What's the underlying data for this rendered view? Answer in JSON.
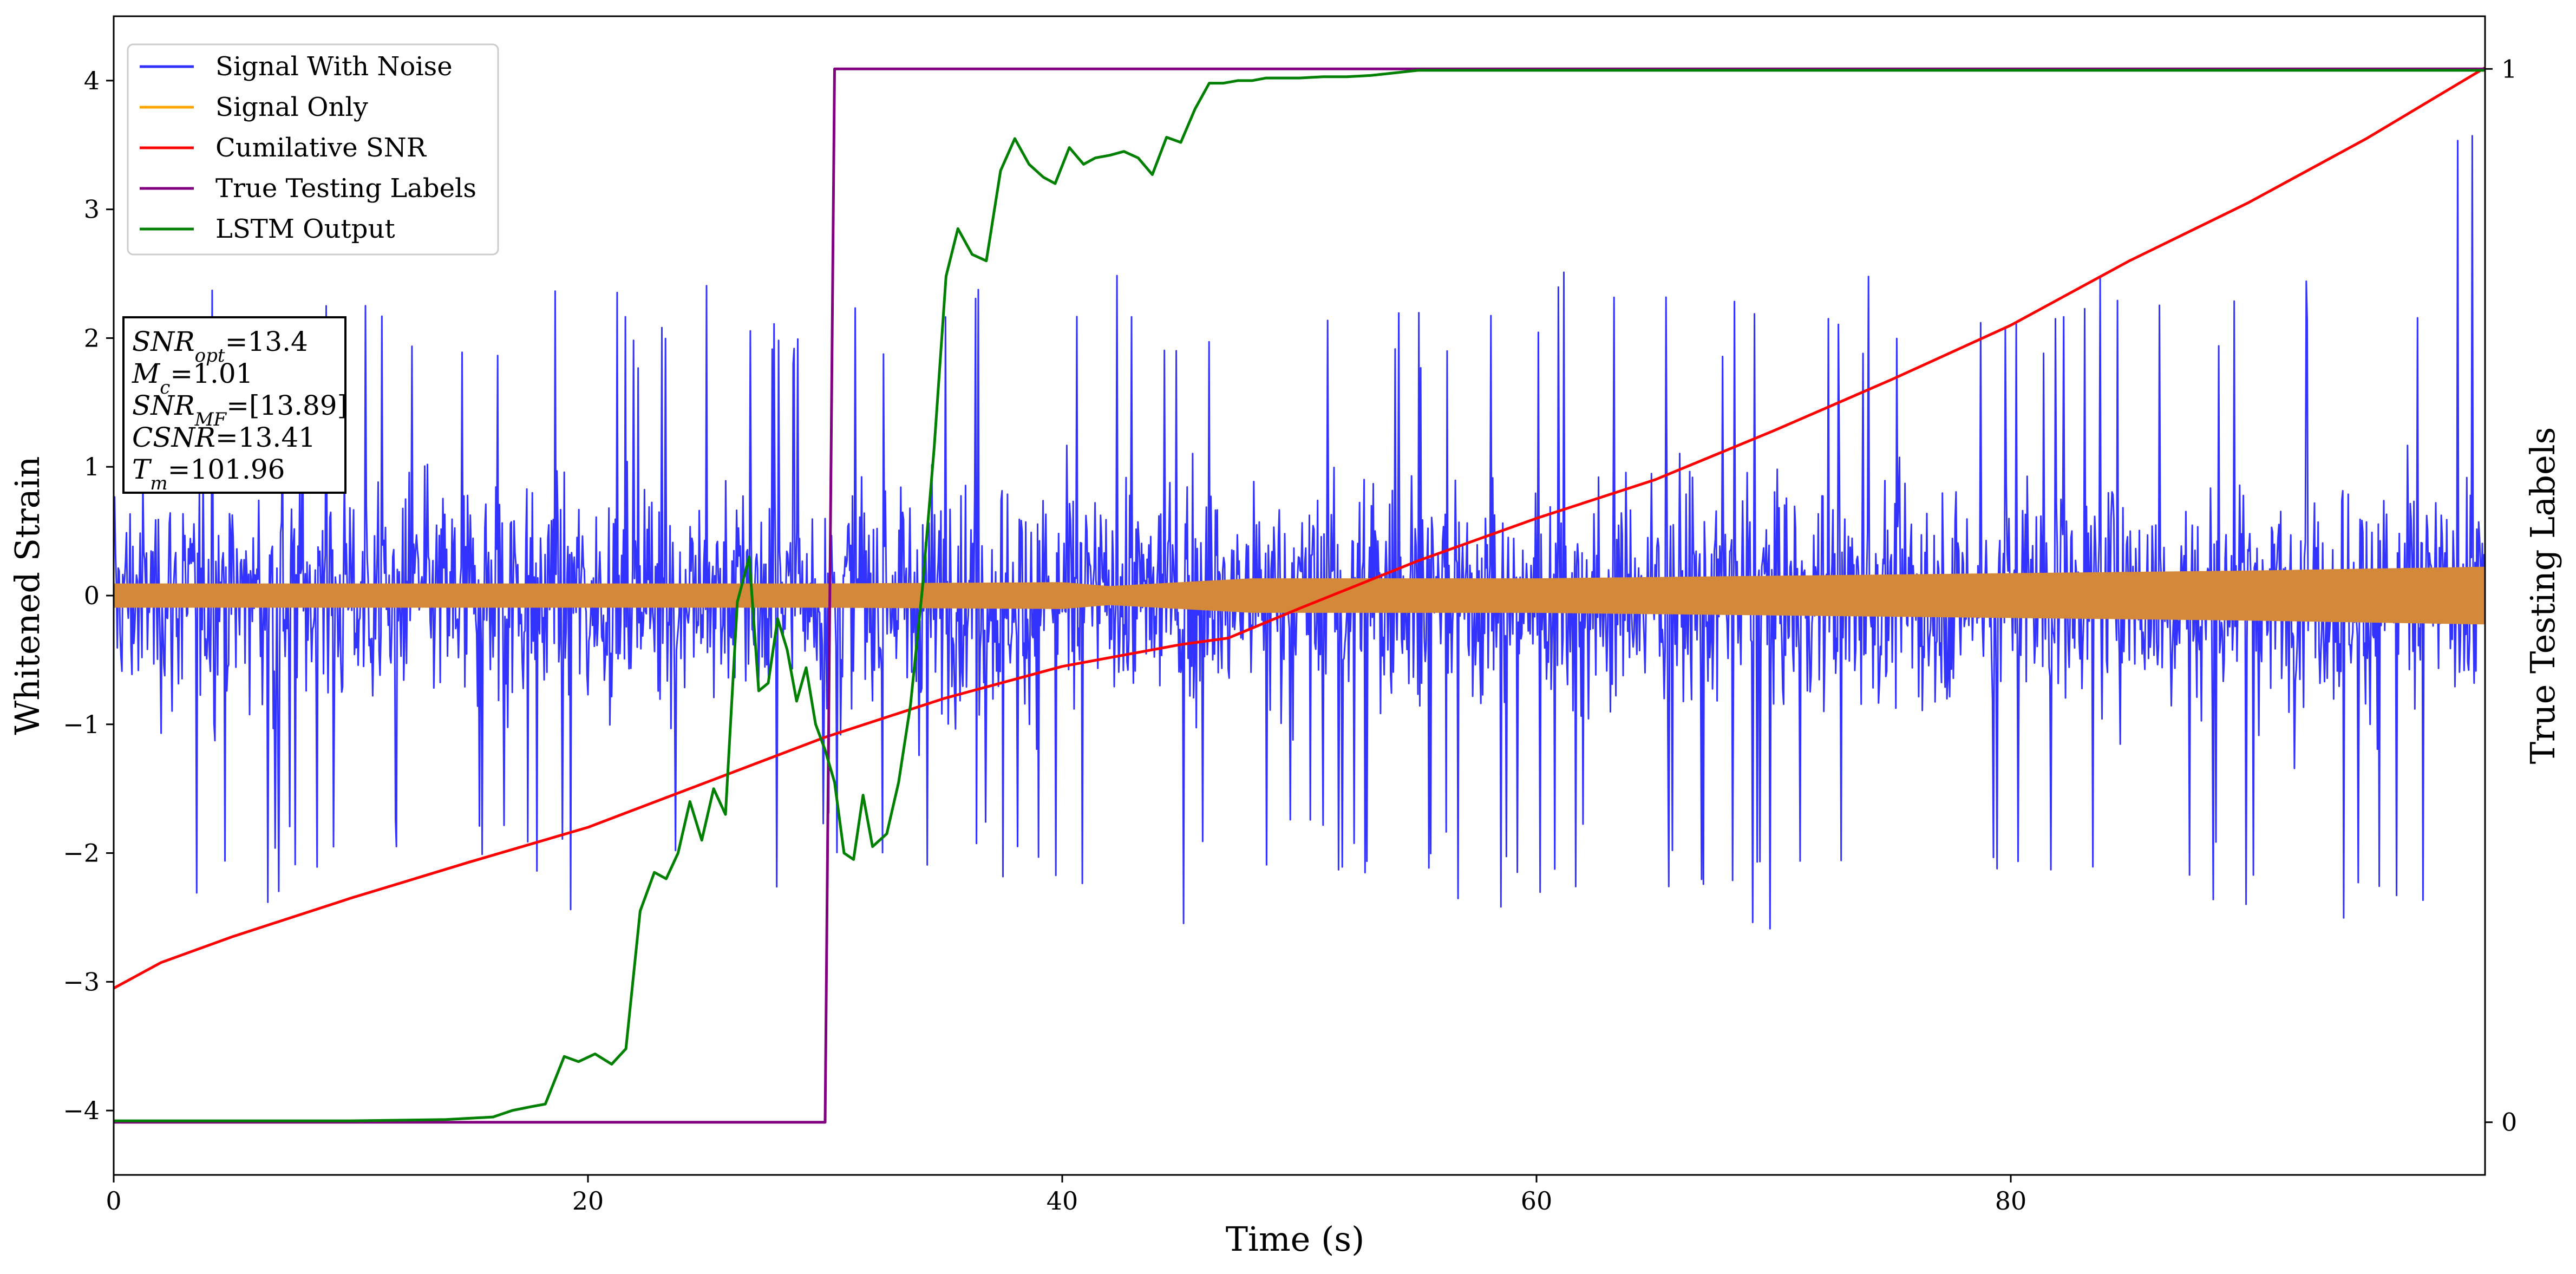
{
  "chart_data": {
    "type": "line",
    "title": "",
    "xlabel": "Time (s)",
    "ylabel": "Whitened Strain",
    "y2label": "True Testing Labels",
    "xlim": [
      0,
      100
    ],
    "ylim": [
      -4.5,
      4.5
    ],
    "y2lim": [
      -0.05,
      1.05
    ],
    "xticks": [
      0,
      20,
      40,
      60,
      80
    ],
    "yticks": [
      -4,
      -3,
      -2,
      -1,
      0,
      1,
      2,
      3,
      4
    ],
    "y2ticks": [
      0,
      1
    ],
    "grid": false,
    "legend_position": "upper-left",
    "legend": [
      "Signal With Noise",
      "Signal Only",
      "Cumilative SNR",
      "True Testing Labels",
      "LSTM Output"
    ],
    "annotation_lines": [
      "SNR_opt=13.4",
      "M_c=1.01",
      "SNR_MF=[13.89]",
      "CSNR=13.41",
      "T_m=101.96"
    ],
    "series": [
      {
        "name": "Signal With Noise",
        "color": "#3333ff",
        "axis": "left",
        "note_style": "dense noisy waveform, sampled",
        "x": [
          0.5,
          2.5,
          5,
          7.5,
          10,
          12.5,
          15,
          17.5,
          20,
          22.5,
          25,
          27.5,
          30,
          32.5,
          35,
          37.5,
          40,
          42.5,
          45,
          47.5,
          50,
          52.5,
          55,
          57.5,
          60,
          62.5,
          65,
          67.5,
          70,
          72.5,
          75,
          77.5,
          80,
          82.5,
          85,
          87.5,
          90,
          92.5,
          95,
          97.5,
          99.5
        ],
        "y_max": [
          1.3,
          2.6,
          2.4,
          2.2,
          2.7,
          2.4,
          2.1,
          2.4,
          2.5,
          2.3,
          2.6,
          2.2,
          2.1,
          2.5,
          2.3,
          2.6,
          2.4,
          2.5,
          2.3,
          2.4,
          2.6,
          2.5,
          2.3,
          2.4,
          2.5,
          2.6,
          2.4,
          2.3,
          2.5,
          2.6,
          2.4,
          2.5,
          2.3,
          2.6,
          2.5,
          2.4,
          2.6,
          2.5,
          2.5,
          2.4,
          4.1
        ],
        "y_min": [
          -2.0,
          -2.2,
          -2.7,
          -2.2,
          -2.0,
          -2.1,
          -2.4,
          -2.3,
          -2.5,
          -2.6,
          -2.3,
          -2.4,
          -2.0,
          -2.3,
          -2.4,
          -2.2,
          -2.4,
          -2.3,
          -2.6,
          -2.4,
          -2.2,
          -2.4,
          -2.3,
          -2.6,
          -2.4,
          -2.3,
          -2.5,
          -2.4,
          -2.8,
          -2.3,
          -2.5,
          -2.6,
          -2.3,
          -2.6,
          -2.4,
          -2.3,
          -2.5,
          -2.4,
          -2.6,
          -2.5,
          -2.3
        ]
      },
      {
        "name": "Signal Only",
        "color": "#d4893a",
        "axis": "left",
        "x": [
          0,
          10,
          20,
          30,
          40,
          42,
          45,
          48,
          50,
          60,
          70,
          80,
          90,
          100
        ],
        "amplitude": [
          0.09,
          0.09,
          0.09,
          0.09,
          0.1,
          0.07,
          0.1,
          0.13,
          0.13,
          0.13,
          0.15,
          0.17,
          0.19,
          0.22
        ]
      },
      {
        "name": "Cumilative SNR",
        "color": "#ff0000",
        "axis": "left",
        "x": [
          0,
          2,
          5,
          10,
          15,
          20,
          25,
          30,
          35,
          40,
          45,
          47,
          50,
          55,
          60,
          65,
          70,
          75,
          80,
          85,
          90,
          95,
          100
        ],
        "y": [
          -3.05,
          -2.85,
          -2.65,
          -2.35,
          -2.07,
          -1.8,
          -1.45,
          -1.1,
          -0.8,
          -0.55,
          -0.38,
          -0.33,
          -0.1,
          0.27,
          0.6,
          0.9,
          1.28,
          1.68,
          2.1,
          2.6,
          3.05,
          3.55,
          4.1
        ]
      },
      {
        "name": "True Testing Labels",
        "color": "#800080",
        "axis": "right",
        "x": [
          0,
          30,
          30.4,
          100
        ],
        "y": [
          0,
          0,
          1,
          1
        ]
      },
      {
        "name": "LSTM Output",
        "color": "#008000",
        "axis": "left",
        "x": [
          0,
          10,
          14,
          16,
          16.8,
          17.6,
          18.2,
          19,
          19.6,
          20.3,
          21,
          21.6,
          22.2,
          22.8,
          23.3,
          23.8,
          24.3,
          24.8,
          25.3,
          25.8,
          26.3,
          26.8,
          27.2,
          27.6,
          28,
          28.4,
          28.8,
          29.2,
          29.6,
          30,
          30.4,
          30.8,
          31.2,
          31.6,
          32,
          32.6,
          33.1,
          33.6,
          34.1,
          34.6,
          35.1,
          35.6,
          36.2,
          36.8,
          37.4,
          38,
          38.6,
          39.2,
          39.7,
          40.3,
          40.9,
          41.4,
          42,
          42.6,
          43.2,
          43.8,
          44.4,
          45,
          45.6,
          46.2,
          46.8,
          47.4,
          48,
          48.6,
          49.2,
          50,
          51,
          52,
          53,
          55,
          56,
          58,
          60,
          70,
          80,
          90,
          100
        ],
        "y": [
          -4.08,
          -4.08,
          -4.07,
          -4.05,
          -4.0,
          -3.97,
          -3.95,
          -3.58,
          -3.62,
          -3.56,
          -3.64,
          -3.52,
          -2.45,
          -2.15,
          -2.2,
          -2.0,
          -1.6,
          -1.9,
          -1.5,
          -1.7,
          -0.05,
          0.3,
          -0.74,
          -0.68,
          -0.18,
          -0.42,
          -0.82,
          -0.56,
          -1.0,
          -1.2,
          -1.45,
          -2.0,
          -2.05,
          -1.55,
          -1.95,
          -1.85,
          -1.45,
          -0.85,
          0.05,
          1.15,
          2.48,
          2.85,
          2.65,
          2.6,
          3.3,
          3.55,
          3.35,
          3.25,
          3.2,
          3.48,
          3.35,
          3.4,
          3.42,
          3.45,
          3.4,
          3.27,
          3.56,
          3.52,
          3.78,
          3.98,
          3.98,
          4.0,
          4.0,
          4.02,
          4.02,
          4.02,
          4.03,
          4.03,
          4.04,
          4.08,
          4.08,
          4.08,
          4.08,
          4.08,
          4.08,
          4.08,
          4.08
        ]
      }
    ]
  }
}
